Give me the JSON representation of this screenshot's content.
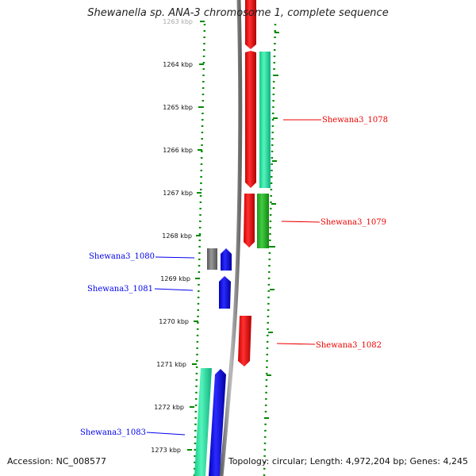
{
  "title": "Shewanella sp. ANA-3 chromosome 1, complete sequence",
  "ticks": [
    "1263 kbp",
    "1264 kbp",
    "1265 kbp",
    "1266 kbp",
    "1267 kbp",
    "1268 kbp",
    "1269 kbp",
    "1270 kbp",
    "1271 kbp",
    "1272 kbp",
    "1273 kbp"
  ],
  "genes": {
    "g1078": "Shewana3_1078",
    "g1079": "Shewana3_1079",
    "g1080": "Shewana3_1080",
    "g1081": "Shewana3_1081",
    "g1082": "Shewana3_1082",
    "g1083": "Shewana3_1083"
  },
  "colors": {
    "forward_gene": "#ee0000",
    "reverse_gene": "#0000ee",
    "cds_teal": "#22dd99",
    "cds_green": "#22bb22",
    "other_gene": "#777777",
    "tick_green": "#008800",
    "backbone": "#888888"
  },
  "footer": {
    "accession": "Accession: NC_008577",
    "summary": "Topology: circular; Length: 4,972,204 bp; Genes: 4,245"
  }
}
